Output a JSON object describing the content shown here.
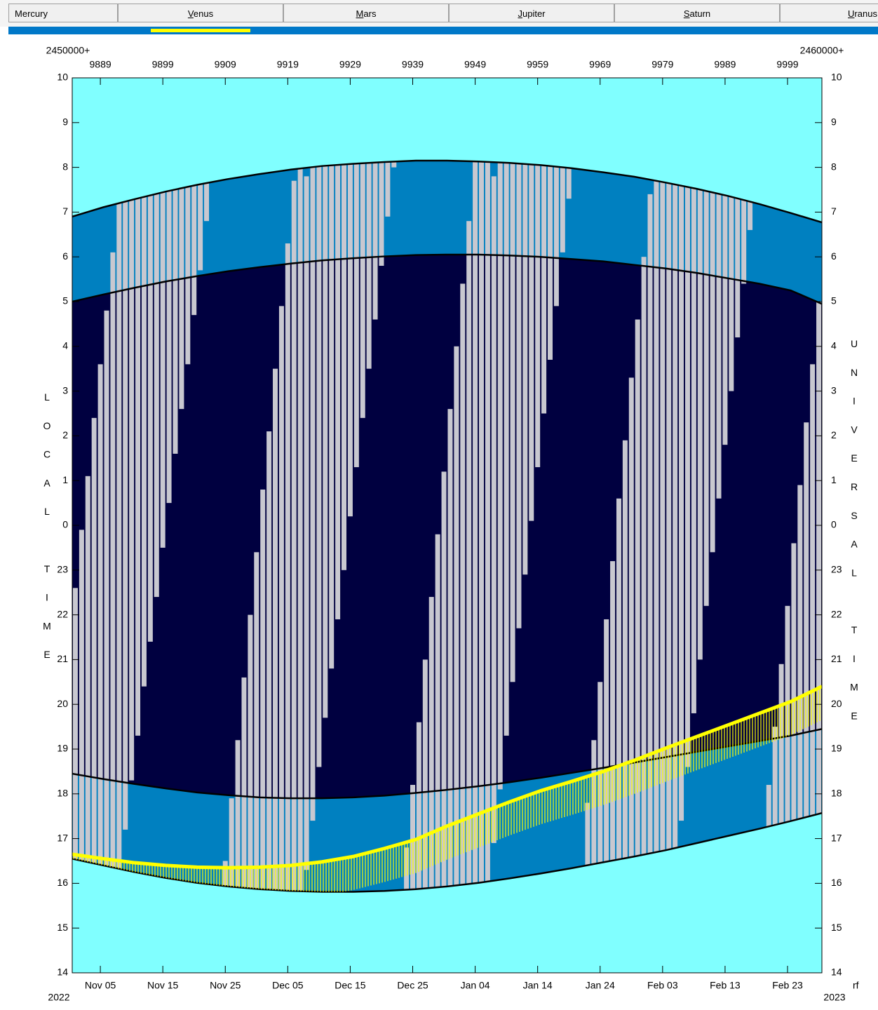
{
  "tabs": [
    "Mercury",
    "Venus",
    "Mars",
    "Jupiter",
    "Saturn",
    "Uranus"
  ],
  "chart_data": {
    "type": "area",
    "top_axis_label": "2450000+",
    "top_axis_label_right": "2460000+",
    "ylabel": "LOCAL TIME",
    "y2label": "UNIVERSAL TIME",
    "start_year": "2022",
    "end_year": "2023",
    "corner_label": "rf",
    "xlim": [
      9884.5,
      10004.5
    ],
    "xticks": [
      {
        "value": 9889,
        "label": "Nov 05"
      },
      {
        "value": 9899,
        "label": "Nov 15"
      },
      {
        "value": 9909,
        "label": "Nov 25"
      },
      {
        "value": 9919,
        "label": "Dec 05"
      },
      {
        "value": 9929,
        "label": "Dec 15"
      },
      {
        "value": 9939,
        "label": "Dec 25"
      },
      {
        "value": 9949,
        "label": "Jan 04"
      },
      {
        "value": 9959,
        "label": "Jan 14"
      },
      {
        "value": 9969,
        "label": "Jan 24"
      },
      {
        "value": 9979,
        "label": "Feb 03"
      },
      {
        "value": 9989,
        "label": "Feb 13"
      },
      {
        "value": 9999,
        "label": "Feb 23"
      }
    ],
    "x2ticks": [
      9889,
      9899,
      9909,
      9919,
      9929,
      9939,
      9949,
      9959,
      9969,
      9979,
      9989,
      9999
    ],
    "ylim": [
      14,
      34
    ],
    "yticks": [
      14,
      15,
      16,
      17,
      18,
      19,
      20,
      21,
      22,
      23,
      {
        "value": 24,
        "label": "0"
      },
      {
        "value": 25,
        "label": "1"
      },
      {
        "value": 26,
        "label": "2"
      },
      {
        "value": 27,
        "label": "3"
      },
      {
        "value": 28,
        "label": "4"
      },
      {
        "value": 29,
        "label": "5"
      },
      {
        "value": 30,
        "label": "6"
      },
      {
        "value": 31,
        "label": "7"
      },
      {
        "value": 32,
        "label": "8"
      },
      {
        "value": 33,
        "label": "9"
      },
      {
        "value": 34,
        "label": "10"
      }
    ],
    "y2lim": [
      14,
      34
    ],
    "y2ticks": [
      14,
      15,
      16,
      17,
      18,
      19,
      20,
      21,
      22,
      23,
      {
        "value": 24,
        "label": "0"
      },
      {
        "value": 25,
        "label": "1"
      },
      {
        "value": 26,
        "label": "2"
      },
      {
        "value": 27,
        "label": "3"
      },
      {
        "value": 28,
        "label": "4"
      },
      {
        "value": 29,
        "label": "5"
      },
      {
        "value": 30,
        "label": "6"
      },
      {
        "value": 31,
        "label": "7"
      },
      {
        "value": 32,
        "label": "8"
      },
      {
        "value": 33,
        "label": "9"
      },
      {
        "value": 34,
        "label": "10"
      }
    ],
    "fills": {
      "day": "#80ffff",
      "twilight": "#0080c0",
      "night": "#000040"
    },
    "x": [
      9884.5,
      9889.5,
      9894.5,
      9899.5,
      9904.5,
      9909.5,
      9914.5,
      9919.5,
      9924.5,
      9929.5,
      9934.5,
      9939.5,
      9944.5,
      9949.5,
      9954.5,
      9959.5,
      9964.5,
      9969.5,
      9974.5,
      9979.5,
      9984.5,
      9989.5,
      9994.5,
      9999.5,
      10004.5
    ],
    "series": [
      {
        "color": "#000000",
        "values": [
          16.55,
          16.4,
          16.25,
          16.12,
          16.01,
          15.93,
          15.87,
          15.83,
          15.81,
          15.81,
          15.83,
          15.87,
          15.93,
          16.01,
          16.11,
          16.22,
          16.34,
          16.47,
          16.6,
          16.74,
          16.9,
          17.06,
          17.22,
          17.39,
          17.57
        ]
      },
      {
        "color": "#000000",
        "values": [
          18.45,
          18.33,
          18.22,
          18.12,
          18.03,
          17.97,
          17.92,
          17.9,
          17.9,
          17.92,
          17.96,
          18.02,
          18.09,
          18.17,
          18.26,
          18.36,
          18.47,
          18.58,
          18.7,
          18.82,
          18.94,
          19.06,
          19.18,
          19.3,
          19.45
        ]
      },
      {
        "color": "#000000",
        "values": [
          29.0,
          29.16,
          29.31,
          29.45,
          29.57,
          29.68,
          29.77,
          29.85,
          29.92,
          29.97,
          30.01,
          30.04,
          30.05,
          30.05,
          30.03,
          30.0,
          29.95,
          29.9,
          29.82,
          29.74,
          29.64,
          29.52,
          29.4,
          29.25,
          28.95
        ]
      },
      {
        "color": "#000000",
        "values": [
          30.9,
          31.11,
          31.29,
          31.46,
          31.61,
          31.74,
          31.85,
          31.95,
          32.03,
          32.08,
          32.12,
          32.15,
          32.15,
          32.13,
          32.1,
          32.05,
          31.98,
          31.89,
          31.79,
          31.66,
          31.52,
          31.36,
          31.18,
          30.98,
          30.77
        ]
      },
      {
        "color": "#ffff00",
        "values": [
          16.65,
          16.55,
          16.46,
          16.4,
          16.36,
          16.35,
          16.36,
          16.4,
          16.48,
          16.6,
          16.78,
          16.98,
          17.28,
          17.55,
          17.82,
          18.07,
          18.28,
          18.5,
          18.75,
          19.02,
          19.28,
          19.54,
          19.8,
          20.06,
          20.4
        ]
      }
    ],
    "moon": {
      "color": "#c8c8d0",
      "x": [
        9885,
        9886,
        9887,
        9888,
        9889,
        9890,
        9891,
        9892,
        9893,
        9894,
        9895,
        9896,
        9897,
        9898,
        9899,
        9900,
        9901,
        9902,
        9903,
        9904,
        9905,
        9906,
        9907,
        9908,
        9909,
        9910,
        9911,
        9912,
        9913,
        9914,
        9915,
        9916,
        9917,
        9918,
        9919,
        9920,
        9921,
        9922,
        9923,
        9924,
        9925,
        9926,
        9927,
        9928,
        9929,
        9930,
        9931,
        9932,
        9933,
        9934,
        9935,
        9936,
        9937,
        9938,
        9939,
        9940,
        9941,
        9942,
        9943,
        9944,
        9945,
        9946,
        9947,
        9948,
        9949,
        9950,
        9951,
        9952,
        9953,
        9954,
        9955,
        9956,
        9957,
        9958,
        9959,
        9960,
        9961,
        9962,
        9963,
        9964,
        9965,
        9966,
        9967,
        9968,
        9969,
        9970,
        9971,
        9972,
        9973,
        9974,
        9975,
        9976,
        9977,
        9978,
        9979,
        9980,
        9981,
        9982,
        9983,
        9984,
        9985,
        9986,
        9987,
        9988,
        9989,
        9990,
        9991,
        9992,
        9993,
        9994,
        9995,
        9996,
        9997,
        9998,
        9999,
        10000,
        10001,
        10002,
        10003,
        10004
      ],
      "rise": [
        11.7,
        12.3,
        12.9,
        13.5,
        14.1,
        14.7,
        15.3,
        16.2,
        17.2,
        18.3,
        19.3,
        20.4,
        21.4,
        22.4,
        23.5,
        24.5,
        25.6,
        26.6,
        27.6,
        28.7,
        29.7,
        30.8,
        31.8,
        7.8,
        8.4,
        9.0,
        9.6,
        10.2,
        10.8,
        11.4,
        12.0,
        12.6,
        13.2,
        13.8,
        14.4,
        15.0,
        15.6,
        16.3,
        17.4,
        18.6,
        19.7,
        20.8,
        21.9,
        23.0,
        24.2,
        25.3,
        26.4,
        27.5,
        28.6,
        29.8,
        30.9,
        32.0,
        7.6,
        8.2,
        8.8,
        9.4,
        10.0,
        10.6,
        11.2,
        11.8,
        12.4,
        13.0,
        13.6,
        14.2,
        14.8,
        15.4,
        16.0,
        16.9,
        18.1,
        19.3,
        20.5,
        21.7,
        22.9,
        24.1,
        25.3,
        26.5,
        27.7,
        28.9,
        30.1,
        31.3,
        32.5,
        33.7,
        7.9,
        8.5,
        9.1,
        9.7,
        10.3,
        10.9,
        11.5,
        12.1,
        12.7,
        13.3,
        13.9,
        14.5,
        15.1,
        15.7,
        16.3,
        17.4,
        18.6,
        19.8,
        21.0,
        22.2,
        23.4,
        24.6,
        25.8,
        27.0,
        28.2,
        29.4,
        30.6,
        31.8,
        33.0,
        7.6,
        8.2,
        8.8,
        9.4,
        10.0,
        10.6,
        11.2,
        11.8,
        12.4
      ],
      "set": [
        22.6,
        23.9,
        25.1,
        26.4,
        27.6,
        28.8,
        30.1,
        31.5,
        32.1,
        32.7,
        33.3,
        33.9,
        34.5,
        35.1,
        35.7,
        36.3,
        36.9,
        37.5,
        38.1,
        38.7,
        39.3,
        39.9,
        40.5,
        15.1,
        16.5,
        17.9,
        19.2,
        20.6,
        22.0,
        23.4,
        24.8,
        26.1,
        27.5,
        28.9,
        30.3,
        31.7,
        33.0,
        31.8,
        32.4,
        33.0,
        33.6,
        34.2,
        34.8,
        35.4,
        36.0,
        36.6,
        37.2,
        37.8,
        38.4,
        39.0,
        39.6,
        40.2,
        15.4,
        16.8,
        18.2,
        19.6,
        21.0,
        22.4,
        23.8,
        25.2,
        26.6,
        28.0,
        29.4,
        30.8,
        32.2,
        33.6,
        35.0,
        31.8,
        32.4,
        33.0,
        33.6,
        34.2,
        34.8,
        35.4,
        36.0,
        36.6,
        37.2,
        37.8,
        38.4,
        39.0,
        39.6,
        40.2,
        17.8,
        19.2,
        20.5,
        21.9,
        23.2,
        24.6,
        25.9,
        27.3,
        28.6,
        30.0,
        31.4,
        32.7,
        34.1,
        35.4,
        36.8,
        31.9,
        32.5,
        33.1,
        33.7,
        34.3,
        34.9,
        35.5,
        36.1,
        36.7,
        37.3,
        37.9,
        38.5,
        39.1,
        39.7,
        18.2,
        19.5,
        20.9,
        22.2,
        23.6,
        24.9,
        26.3,
        27.6,
        29.0
      ]
    }
  }
}
